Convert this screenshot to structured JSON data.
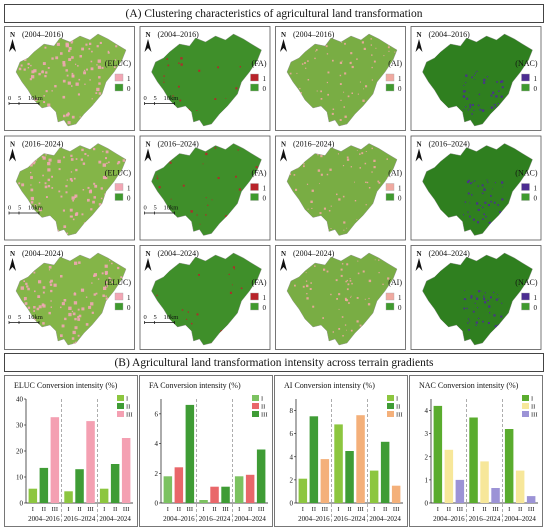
{
  "section_a_title": "(A) Clustering characteristics of agricultural land transformation",
  "section_b_title": "(B)  Agricultural land transformation intensity across terrain gradients",
  "map_grid": {
    "periods": [
      "(2004–2016)",
      "(2016–2024)",
      "(2004–2024)"
    ],
    "indicators": [
      "(ELUC)",
      "(FA)",
      "(AI)",
      "(NAC)"
    ],
    "north_label": "N",
    "scale_labels": [
      "0",
      "5",
      "10km"
    ],
    "legend_high": "1",
    "legend_low": "0",
    "legend_colors": {
      "ELUC": {
        "high": "#f2a6b4",
        "low": "#3f9a2e"
      },
      "FA": {
        "high": "#b8232a",
        "low": "#3f9a2e"
      },
      "AI": {
        "high": "#f0a9a0",
        "low": "#3f9a2e"
      },
      "NAC": {
        "high": "#4b2d91",
        "low": "#3f9a2e"
      }
    },
    "base_colors": {
      "ELUC": "#84b548",
      "FA": "#3f8f2a",
      "AI": "#79ad44",
      "NAC": "#2f7f1f"
    }
  },
  "chart_data": [
    {
      "type": "bar",
      "title": "ELUC Conversion intensity (%)",
      "categories": [
        "2004–2016",
        "2016–2024",
        "2004–2024"
      ],
      "subcategories": [
        "I",
        "II",
        "III"
      ],
      "ylim": [
        0,
        40
      ],
      "yticks": [
        0,
        10,
        20,
        30,
        40
      ],
      "series": [
        {
          "name": "I",
          "color": "#8cc63f",
          "values": [
            5.5,
            4.5,
            5.5
          ]
        },
        {
          "name": "II",
          "color": "#3f9c35",
          "values": [
            13.5,
            13,
            15
          ]
        },
        {
          "name": "III",
          "color": "#f4a0b2",
          "values": [
            33,
            31.5,
            25
          ]
        }
      ]
    },
    {
      "type": "bar",
      "title": "FA Conversion intensity (%)",
      "categories": [
        "2004–2016",
        "2016–2024",
        "2004–2024"
      ],
      "subcategories": [
        "I",
        "II",
        "III"
      ],
      "ylim": [
        0,
        7
      ],
      "yticks": [
        0,
        2,
        4,
        6
      ],
      "series": [
        {
          "name": "I",
          "color": "#7cc261",
          "values": [
            1.8,
            0.2,
            1.8
          ]
        },
        {
          "name": "II",
          "color": "#e9676a",
          "values": [
            2.4,
            1.1,
            1.9
          ]
        },
        {
          "name": "III",
          "color": "#3f9c35",
          "values": [
            6.6,
            1.1,
            3.6
          ]
        }
      ]
    },
    {
      "type": "bar",
      "title": "AI Conversion intensity (%)",
      "categories": [
        "2004–2016",
        "2016–2024",
        "2004–2024"
      ],
      "subcategories": [
        "I",
        "II",
        "III"
      ],
      "ylim": [
        0,
        9
      ],
      "yticks": [
        0,
        2,
        4,
        6,
        8
      ],
      "series": [
        {
          "name": "I",
          "color": "#8cc63f",
          "values": [
            2.1,
            6.8,
            2.8
          ]
        },
        {
          "name": "II",
          "color": "#3f9c35",
          "values": [
            7.5,
            4.5,
            5.3
          ]
        },
        {
          "name": "III",
          "color": "#f4b07a",
          "values": [
            3.8,
            7.6,
            1.5
          ]
        }
      ]
    },
    {
      "type": "bar",
      "title": "NAC Conversion intensity (%)",
      "categories": [
        "2004–2016",
        "2016–2024",
        "2004–2024"
      ],
      "subcategories": [
        "I",
        "II",
        "III"
      ],
      "ylim": [
        0,
        4.5
      ],
      "yticks": [
        0,
        1,
        2,
        3,
        4
      ],
      "series": [
        {
          "name": "I",
          "color": "#5aac2e",
          "values": [
            4.2,
            3.7,
            3.2
          ]
        },
        {
          "name": "II",
          "color": "#f7e79a",
          "values": [
            2.3,
            1.8,
            1.4
          ]
        },
        {
          "name": "III",
          "color": "#9c93d6",
          "values": [
            1.0,
            0.65,
            0.3
          ]
        }
      ]
    }
  ]
}
